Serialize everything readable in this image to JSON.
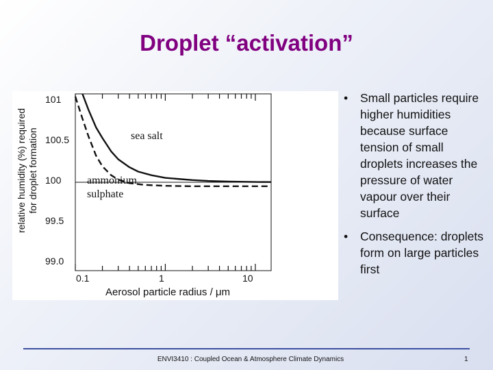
{
  "slide": {
    "title": "Droplet “activation”",
    "footer": "ENVI3410 : Coupled Ocean & Atmosphere Climate Dynamics",
    "page_number": "1"
  },
  "figure": {
    "ylabel_line1": "relative humidity (%) required",
    "ylabel_line2": "for droplet formation",
    "xlabel": "Aerosol particle radius / μm",
    "yticks": [
      "101",
      "100.5",
      "100",
      "99.5",
      "99.0"
    ],
    "xticks": [
      "0.1",
      "1",
      "10"
    ],
    "annotation_sea_salt": "sea salt",
    "annotation_ammonium_1": "ammonium",
    "annotation_ammonium_2": "sulphate"
  },
  "bullets": [
    {
      "text": "Small particles require higher humidities because surface tension of small droplets increases the pressure of water vapour over their surface"
    },
    {
      "text": "Consequence: droplets form on large particles first"
    }
  ],
  "chart_data": {
    "type": "line",
    "title": "",
    "xlabel": "Aerosol particle radius / μm",
    "ylabel": "relative humidity (%) required for droplet formation",
    "xscale": "log",
    "xlim": [
      0.1,
      15
    ],
    "ylim": [
      99.0,
      101
    ],
    "x_ticks": [
      0.1,
      1,
      10
    ],
    "y_ticks": [
      99.0,
      99.5,
      100,
      100.5,
      101
    ],
    "series": [
      {
        "name": "sea salt",
        "style": "solid",
        "x": [
          0.12,
          0.14,
          0.17,
          0.2,
          0.25,
          0.3,
          0.4,
          0.5,
          0.7,
          1,
          1.5,
          2,
          3,
          5,
          10,
          15
        ],
        "y": [
          101,
          100.82,
          100.62,
          100.5,
          100.35,
          100.26,
          100.17,
          100.12,
          100.08,
          100.05,
          100.035,
          100.025,
          100.015,
          100.008,
          100.003,
          100.002
        ]
      },
      {
        "name": "ammonium sulphate",
        "style": "dashed",
        "x": [
          0.1,
          0.12,
          0.14,
          0.17,
          0.2,
          0.25,
          0.3,
          0.4,
          0.6,
          1,
          2,
          5,
          10,
          15
        ],
        "y": [
          100.97,
          100.72,
          100.52,
          100.3,
          100.18,
          100.08,
          100.03,
          99.99,
          99.97,
          99.96,
          99.955,
          99.955,
          99.955,
          99.955
        ]
      }
    ]
  }
}
